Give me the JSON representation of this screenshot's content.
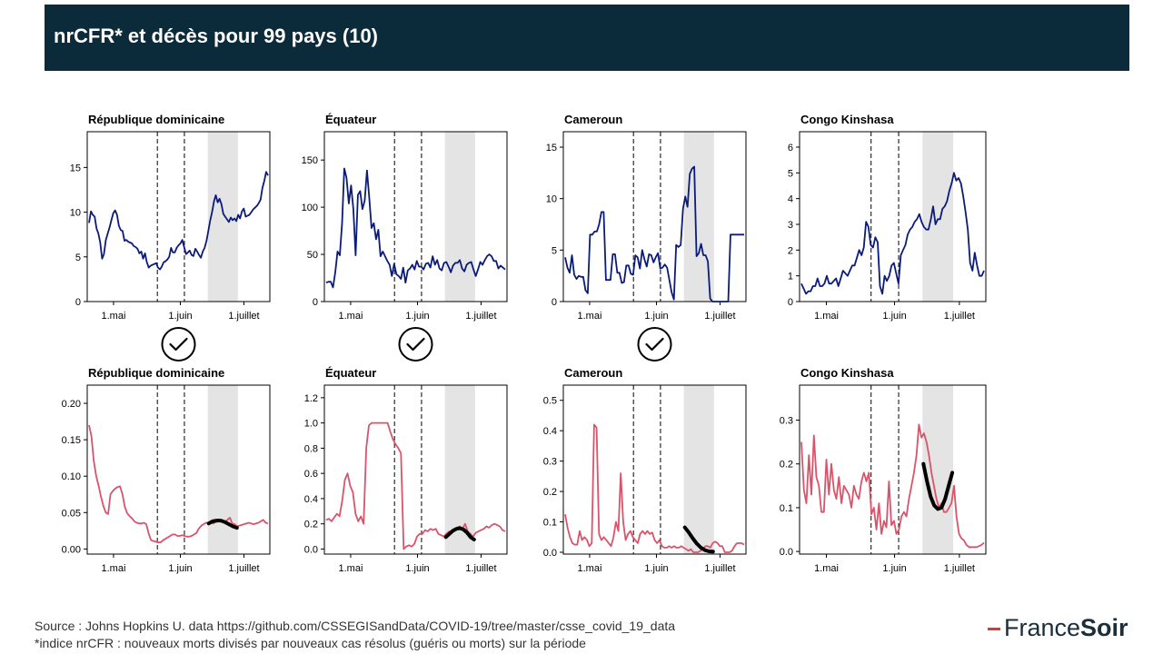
{
  "header": {
    "title": "nrCFR* et décès pour 99 pays (10)"
  },
  "footer": {
    "source": "Source : Johns Hopkins U. data https://github.com/CSSEGISandData/COVID-19/tree/master/csse_covid_19_data",
    "note": "*indice nrCFR : nouveaux morts divisés par nouveaux cas résolus (guéris ou morts) sur la période"
  },
  "logo": {
    "part1": "France",
    "part2": "Soir"
  },
  "colors": {
    "header_bg": "#0b2a3a",
    "deaths_line": "#0b1b7a",
    "nrcfr_line": "#d9546b",
    "fit_line": "#000000",
    "shade": "#e4e4e4"
  },
  "chart_data": [
    {
      "type": "line",
      "title": "République dominicaine",
      "ylim": [
        0,
        19
      ],
      "yticks": [
        0,
        5,
        10,
        15
      ],
      "x_ticks": [
        "1.mai",
        "1.juin",
        "1.juillet"
      ],
      "color": "#0b1b7a",
      "checked": true,
      "values": [
        8.8,
        10.1,
        9.7,
        9.5,
        8.2,
        7.6,
        6.6,
        4.8,
        5.3,
        6.9,
        7.6,
        8.3,
        9.1,
        9.9,
        10.2,
        9.7,
        8.5,
        8.0,
        7.9,
        6.8,
        6.9,
        6.7,
        6.6,
        6.5,
        6.2,
        6.1,
        5.9,
        5.4,
        5.6,
        4.8,
        5.4,
        4.4,
        3.8,
        4.0,
        4.1,
        4.2,
        4.3,
        3.8,
        3.6,
        3.9,
        4.4,
        4.5,
        4.7,
        5.0,
        6.0,
        5.5,
        5.5,
        6.0,
        6.3,
        6.5,
        6.9,
        6.1,
        5.3,
        5.5,
        5.7,
        5.2,
        5.1,
        5.9,
        5.6,
        5.2,
        4.9,
        5.6,
        6.0,
        6.8,
        7.9,
        9.1,
        10.0,
        11.2,
        11.9,
        11.1,
        11.5,
        10.9,
        9.8,
        9.5,
        9.2,
        8.9,
        9.4,
        9.1,
        9.3,
        9.0,
        9.7,
        9.3,
        10.1,
        10.4,
        9.5,
        9.6,
        9.7,
        10.0,
        10.3,
        10.5,
        10.7,
        11.0,
        11.4,
        12.7,
        13.5,
        14.5,
        14.1
      ]
    },
    {
      "type": "line",
      "title": "Équateur",
      "ylim": [
        0,
        180
      ],
      "yticks": [
        0,
        50,
        100,
        150
      ],
      "x_ticks": [
        "1.mai",
        "1.juin",
        "1.juillet"
      ],
      "color": "#0b1b7a",
      "checked": true,
      "values": [
        20,
        21,
        21,
        15,
        31,
        53,
        49,
        83,
        141,
        131,
        104,
        123,
        98,
        49,
        113,
        117,
        98,
        107,
        139,
        110,
        78,
        83,
        66,
        76,
        48,
        53,
        48,
        43,
        39,
        27,
        40,
        29,
        27,
        24,
        36,
        20,
        33,
        35,
        39,
        34,
        43,
        37,
        37,
        34,
        40,
        41,
        36,
        48,
        39,
        44,
        35,
        33,
        41,
        42,
        37,
        31,
        38,
        41,
        41,
        44,
        35,
        32,
        39,
        41,
        42,
        34,
        27,
        34,
        42,
        39,
        44,
        48,
        50,
        48,
        43,
        43,
        35,
        38,
        36,
        34
      ]
    },
    {
      "type": "line",
      "title": "Cameroun",
      "ylim": [
        0,
        16.5
      ],
      "yticks": [
        0,
        5,
        10,
        15
      ],
      "x_ticks": [
        "1.mai",
        "1.juin",
        "1.juillet"
      ],
      "color": "#0b1b7a",
      "checked": true,
      "values": [
        4.3,
        3.3,
        2.8,
        4.5,
        2.6,
        2.2,
        2.5,
        2.4,
        2.4,
        1.1,
        0.8,
        6.5,
        6.5,
        6.8,
        6.8,
        7.5,
        8.7,
        8.7,
        2.1,
        2.1,
        2.1,
        4.6,
        4.6,
        2.8,
        2.8,
        1.8,
        1.9,
        3.5,
        3.5,
        2.7,
        2.6,
        4.5,
        4.3,
        3.2,
        5.0,
        4.1,
        3.4,
        4.6,
        4.5,
        3.8,
        4.3,
        4.7,
        3.2,
        3.3,
        3.6,
        3.3,
        2.1,
        0.9,
        0.2,
        5.5,
        5.3,
        5.5,
        9.0,
        10.2,
        9.2,
        12.4,
        12.9,
        13.1,
        4.4,
        4.7,
        5.6,
        4.5,
        4.5,
        3.9,
        0.3,
        0.0,
        0.0,
        0.0,
        0.0,
        0.0,
        0.0,
        0.0,
        0.0,
        6.5,
        6.5,
        6.5,
        6.5,
        6.5,
        6.5,
        6.5
      ]
    },
    {
      "type": "line",
      "title": "Congo Kinshasa",
      "ylim": [
        0,
        6.6
      ],
      "yticks": [
        0,
        1,
        2,
        3,
        4,
        5,
        6
      ],
      "x_ticks": [
        "1.mai",
        "1.juin",
        "1.juillet"
      ],
      "color": "#0b1b7a",
      "checked": false,
      "values": [
        0.7,
        0.5,
        0.3,
        0.4,
        0.4,
        0.6,
        0.6,
        0.9,
        0.6,
        0.6,
        0.7,
        1.0,
        0.7,
        0.7,
        0.8,
        0.9,
        0.6,
        0.9,
        1.2,
        1.1,
        1.0,
        1.2,
        1.4,
        1.4,
        1.7,
        2.0,
        1.8,
        2.1,
        3.1,
        2.9,
        2.2,
        2.1,
        2.5,
        2.3,
        0.6,
        0.3,
        1.0,
        0.8,
        1.0,
        1.4,
        1.5,
        1.1,
        0.7,
        1.8,
        2.0,
        2.2,
        2.6,
        2.8,
        2.9,
        3.1,
        3.2,
        3.4,
        3.1,
        2.9,
        2.8,
        2.8,
        3.2,
        3.7,
        3.0,
        3.2,
        3.2,
        3.6,
        3.7,
        3.9,
        4.3,
        4.6,
        5.0,
        4.7,
        4.8,
        4.6,
        4.1,
        3.5,
        2.8,
        1.5,
        1.2,
        1.9,
        1.4,
        1.0,
        1.0,
        1.2
      ]
    },
    {
      "type": "line",
      "title": "République dominicaine",
      "ylim": [
        -0.007,
        0.225
      ],
      "yticks": [
        "0.00",
        "0.05",
        "0.10",
        "0.15",
        "0.20"
      ],
      "x_ticks": [
        "1.mai",
        "1.juin",
        "1.juillet"
      ],
      "color": "#d9546b",
      "checked": false,
      "values": [
        0.17,
        0.155,
        0.12,
        0.1,
        0.087,
        0.072,
        0.059,
        0.05,
        0.048,
        0.075,
        0.08,
        0.083,
        0.085,
        0.086,
        0.075,
        0.058,
        0.049,
        0.045,
        0.042,
        0.038,
        0.036,
        0.035,
        0.035,
        0.036,
        0.034,
        0.021,
        0.012,
        0.011,
        0.01,
        0.009,
        0.009,
        0.012,
        0.014,
        0.016,
        0.018,
        0.02,
        0.02,
        0.018,
        0.018,
        0.019,
        0.018,
        0.017,
        0.017,
        0.018,
        0.02,
        0.022,
        0.028,
        0.032,
        0.034,
        0.036,
        0.036,
        0.036,
        0.035,
        0.037,
        0.04,
        0.04,
        0.038,
        0.037,
        0.04,
        0.043,
        0.035,
        0.034,
        0.031,
        0.032,
        0.033,
        0.034,
        0.035,
        0.036,
        0.035,
        0.034,
        0.035,
        0.036,
        0.038,
        0.04,
        0.036,
        0.035
      ],
      "fit": [
        0.035,
        0.038,
        0.039,
        0.039,
        0.037,
        0.034,
        0.031,
        0.029
      ]
    },
    {
      "type": "line",
      "title": "Équateur",
      "ylim": [
        -0.04,
        1.3
      ],
      "yticks": [
        "0.0",
        "0.2",
        "0.4",
        "0.6",
        "0.8",
        "1.0",
        "1.2"
      ],
      "x_ticks": [
        "1.mai",
        "1.juin",
        "1.juillet"
      ],
      "color": "#d9546b",
      "checked": false,
      "values": [
        0.23,
        0.24,
        0.22,
        0.25,
        0.28,
        0.26,
        0.38,
        0.55,
        0.6,
        0.5,
        0.45,
        0.28,
        0.22,
        0.26,
        0.2,
        0.8,
        0.98,
        1.0,
        1.0,
        1.0,
        1.0,
        1.0,
        1.0,
        1.0,
        0.93,
        0.87,
        0.83,
        0.8,
        0.76,
        0.0,
        0.02,
        0.03,
        0.02,
        0.04,
        0.1,
        0.12,
        0.12,
        0.15,
        0.14,
        0.16,
        0.15,
        0.16,
        0.12,
        0.11,
        0.1,
        0.12,
        0.14,
        0.13,
        0.15,
        0.17,
        0.18,
        0.16,
        0.2,
        0.14,
        0.12,
        0.1,
        0.13,
        0.14,
        0.15,
        0.16,
        0.18,
        0.17,
        0.19,
        0.2,
        0.19,
        0.18,
        0.15,
        0.14
      ],
      "fit": [
        0.095,
        0.12,
        0.145,
        0.16,
        0.165,
        0.155,
        0.13,
        0.095,
        0.075
      ]
    },
    {
      "type": "line",
      "title": "Cameroun",
      "ylim": [
        -0.006,
        0.55
      ],
      "yticks": [
        "0.0",
        "0.1",
        "0.2",
        "0.3",
        "0.4",
        "0.5"
      ],
      "x_ticks": [
        "1.mai",
        "1.juin",
        "1.juillet"
      ],
      "color": "#d9546b",
      "checked": false,
      "values": [
        0.125,
        0.08,
        0.05,
        0.03,
        0.025,
        0.025,
        0.07,
        0.04,
        0.05,
        0.04,
        0.02,
        0.03,
        0.42,
        0.41,
        0.06,
        0.04,
        0.05,
        0.04,
        0.03,
        0.02,
        0.05,
        0.1,
        0.07,
        0.26,
        0.1,
        0.04,
        0.06,
        0.07,
        0.05,
        0.04,
        0.03,
        0.06,
        0.07,
        0.06,
        0.07,
        0.06,
        0.065,
        0.04,
        0.03,
        0.04,
        0.02,
        0.015,
        0.015,
        0.02,
        0.015,
        0.02,
        0.015,
        0.015,
        0.02,
        0.015,
        0.01,
        0.005,
        0.01,
        0.0,
        0.0,
        0.0,
        0.005,
        0.01,
        0.02,
        0.02,
        0.015,
        0.03,
        0.035,
        0.03,
        0.02,
        0.02,
        0.0,
        0.0,
        0.0,
        0.005,
        0.02,
        0.03,
        0.03,
        0.03,
        0.025
      ],
      "fit": [
        0.082,
        0.065,
        0.045,
        0.028,
        0.015,
        0.007,
        0.003,
        0.002
      ]
    },
    {
      "type": "line",
      "title": "Congo Kinshasa",
      "ylim": [
        -0.006,
        0.38
      ],
      "yticks": [
        "0.0",
        "0.1",
        "0.2",
        "0.3"
      ],
      "x_ticks": [
        "1.mai",
        "1.juin",
        "1.juillet"
      ],
      "color": "#d9546b",
      "checked": false,
      "values": [
        0.25,
        0.14,
        0.11,
        0.22,
        0.13,
        0.265,
        0.17,
        0.15,
        0.09,
        0.09,
        0.21,
        0.13,
        0.2,
        0.14,
        0.12,
        0.17,
        0.11,
        0.15,
        0.14,
        0.13,
        0.1,
        0.15,
        0.13,
        0.12,
        0.16,
        0.18,
        0.16,
        0.18,
        0.085,
        0.1,
        0.05,
        0.11,
        0.04,
        0.07,
        0.055,
        0.16,
        0.06,
        0.07,
        0.04,
        0.05,
        0.08,
        0.09,
        0.08,
        0.12,
        0.15,
        0.18,
        0.22,
        0.29,
        0.26,
        0.27,
        0.25,
        0.22,
        0.18,
        0.15,
        0.12,
        0.1,
        0.11,
        0.09,
        0.09,
        0.1,
        0.11,
        0.15,
        0.08,
        0.04,
        0.03,
        0.025,
        0.015,
        0.01,
        0.01,
        0.01,
        0.01,
        0.012,
        0.015,
        0.02
      ],
      "fit": [
        0.2,
        0.16,
        0.125,
        0.105,
        0.097,
        0.1,
        0.12,
        0.15,
        0.18
      ]
    }
  ]
}
